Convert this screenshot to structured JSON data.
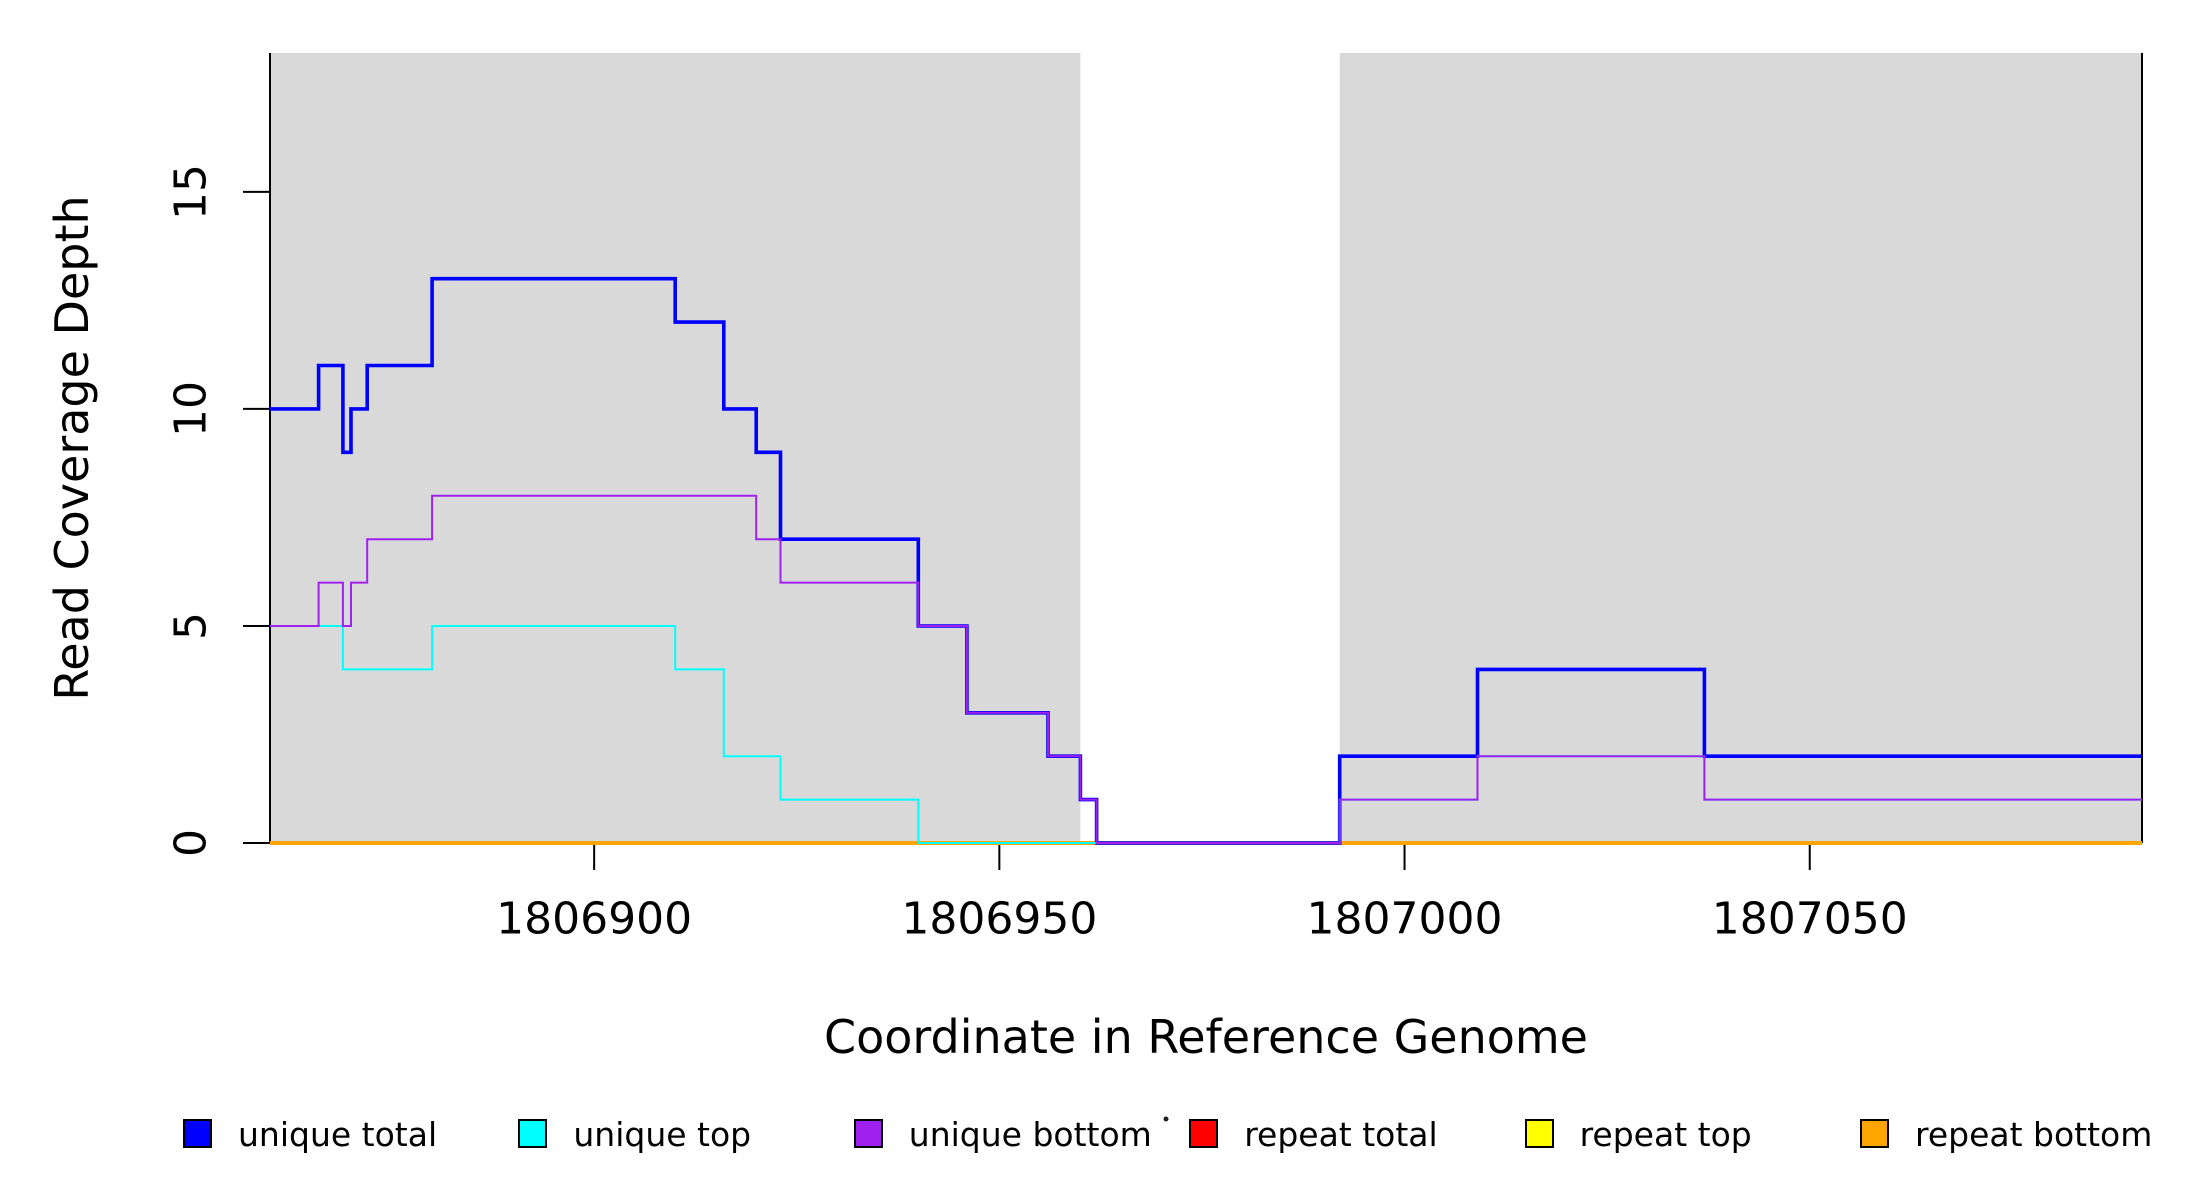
{
  "figure": {
    "xlabel": "Coordinate in Reference Genome",
    "ylabel": "Read Coverage Depth"
  },
  "chart_data": {
    "type": "line",
    "subtype": "step-coverage-plot",
    "title": "",
    "xlabel": "Coordinate in Reference Genome",
    "ylabel": "Read Coverage Depth",
    "xlim": [
      1806860,
      1807091
    ],
    "ylim": [
      0,
      18.2
    ],
    "x_ticks": [
      1806900,
      1806950,
      1807000,
      1807050
    ],
    "y_ticks": [
      0,
      5,
      10,
      15
    ],
    "grid": false,
    "axis_color": "#000000",
    "plot_background": "#ffffff",
    "shaded_regions": [
      {
        "x0": 1806860,
        "x1": 1806960,
        "color": "#D9D9D9"
      },
      {
        "x0": 1806992,
        "x1": 1807091,
        "color": "#D9D9D9"
      }
    ],
    "series_draw_order": [
      "repeat total",
      "repeat top",
      "repeat bottom",
      "unique total",
      "unique top",
      "unique bottom"
    ],
    "series": [
      {
        "name": "repeat total",
        "color": "#FF0000",
        "line_width": 2,
        "steps": [
          [
            1806860,
            0
          ]
        ],
        "end_x": 1807091
      },
      {
        "name": "repeat top",
        "color": "#FFFF00",
        "line_width": 2,
        "steps": [
          [
            1806860,
            0
          ]
        ],
        "end_x": 1807091
      },
      {
        "name": "repeat bottom",
        "color": "#FFA500",
        "line_width": 4,
        "steps": [
          [
            1806860,
            0
          ]
        ],
        "end_x": 1807091
      },
      {
        "name": "unique total",
        "color": "#0000FF",
        "line_width": 3.6,
        "steps": [
          [
            1806860,
            10
          ],
          [
            1806866,
            11
          ],
          [
            1806869,
            9
          ],
          [
            1806870,
            10
          ],
          [
            1806872,
            11
          ],
          [
            1806880,
            13
          ],
          [
            1806910,
            12
          ],
          [
            1806916,
            10
          ],
          [
            1806920,
            9
          ],
          [
            1806923,
            7
          ],
          [
            1806940,
            5
          ],
          [
            1806946,
            3
          ],
          [
            1806956,
            2
          ],
          [
            1806960,
            1
          ],
          [
            1806962,
            0
          ],
          [
            1806992,
            2
          ],
          [
            1807009,
            4
          ],
          [
            1807037,
            2
          ]
        ],
        "end_x": 1807091
      },
      {
        "name": "unique top",
        "color": "#00FFFF",
        "line_width": 2,
        "steps": [
          [
            1806860,
            5
          ],
          [
            1806869,
            4
          ],
          [
            1806880,
            5
          ],
          [
            1806910,
            4
          ],
          [
            1806916,
            2
          ],
          [
            1806923,
            1
          ],
          [
            1806940,
            0
          ],
          [
            1806992,
            1
          ],
          [
            1807009,
            2
          ],
          [
            1807037,
            1
          ]
        ],
        "end_x": 1807091
      },
      {
        "name": "unique bottom",
        "color": "#A020F0",
        "line_width": 2,
        "steps": [
          [
            1806860,
            5
          ],
          [
            1806866,
            6
          ],
          [
            1806869,
            5
          ],
          [
            1806870,
            6
          ],
          [
            1806872,
            7
          ],
          [
            1806880,
            8
          ],
          [
            1806920,
            7
          ],
          [
            1806923,
            6
          ],
          [
            1806940,
            5
          ],
          [
            1806946,
            3
          ],
          [
            1806956,
            2
          ],
          [
            1806960,
            1
          ],
          [
            1806962,
            0
          ],
          [
            1806992,
            1
          ],
          [
            1807009,
            2
          ],
          [
            1807037,
            1
          ]
        ],
        "end_x": 1807091
      }
    ],
    "legend": {
      "position": "bottom",
      "items": [
        {
          "label": "unique total",
          "color": "#0000FF"
        },
        {
          "label": "unique top",
          "color": "#00FFFF"
        },
        {
          "label": "unique bottom",
          "color": "#A020F0"
        },
        {
          "label": "repeat total",
          "color": "#FF0000"
        },
        {
          "label": "repeat top",
          "color": "#FFFF00"
        },
        {
          "label": "repeat bottom",
          "color": "#FFA500"
        }
      ]
    },
    "annotations": [
      {
        "type": "dot",
        "note": "small stray mark left of repeat-total legend swatch"
      }
    ]
  }
}
